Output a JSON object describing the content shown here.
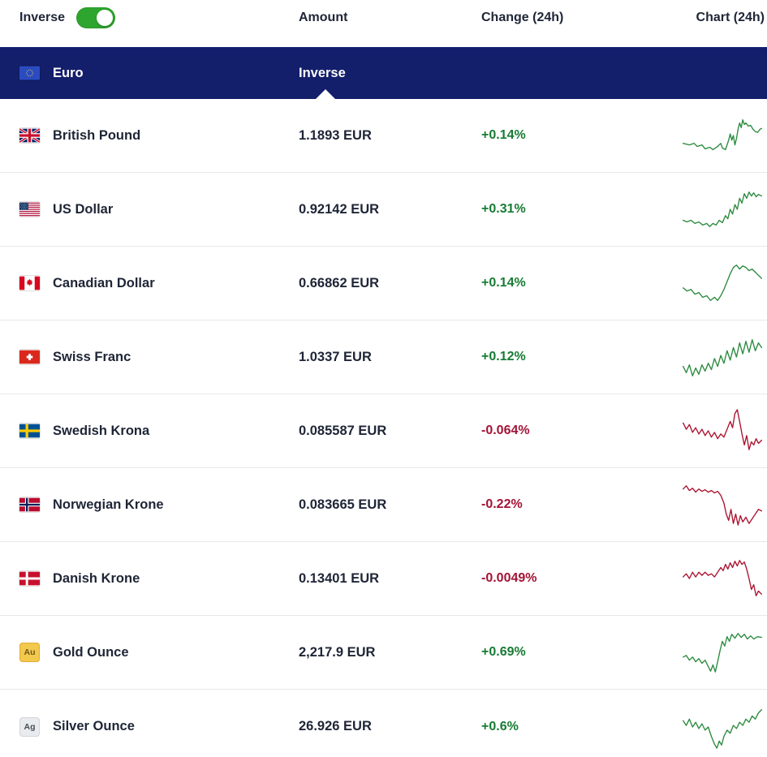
{
  "colors": {
    "navy": "#131f6b",
    "toggle_on": "#2ea52e",
    "positive": "#177b33",
    "negative": "#a31335"
  },
  "header": {
    "inverse_label": "Inverse",
    "toggle_state": "on",
    "amount_col": "Amount",
    "change_col": "Change (24h)",
    "chart_col": "Chart (24h)"
  },
  "base": {
    "flag": "eu",
    "name": "Euro",
    "amount_label": "Inverse"
  },
  "rows": [
    {
      "flag": "gb",
      "name": "British Pound",
      "amount": "1.1893 EUR",
      "change": "+0.14%",
      "direction": "up",
      "spark": [
        [
          0,
          40
        ],
        [
          8,
          42
        ],
        [
          14,
          40
        ],
        [
          18,
          44
        ],
        [
          24,
          42
        ],
        [
          28,
          47
        ],
        [
          34,
          45
        ],
        [
          38,
          48
        ],
        [
          44,
          44
        ],
        [
          48,
          40
        ],
        [
          50,
          46
        ],
        [
          54,
          48
        ],
        [
          58,
          36
        ],
        [
          60,
          28
        ],
        [
          62,
          36
        ],
        [
          64,
          30
        ],
        [
          66,
          42
        ],
        [
          68,
          34
        ],
        [
          70,
          22
        ],
        [
          72,
          14
        ],
        [
          74,
          20
        ],
        [
          76,
          10
        ],
        [
          78,
          16
        ],
        [
          80,
          14
        ],
        [
          83,
          18
        ],
        [
          86,
          17
        ],
        [
          89,
          22
        ],
        [
          92,
          25
        ],
        [
          95,
          26
        ],
        [
          98,
          22
        ],
        [
          100,
          21
        ]
      ]
    },
    {
      "flag": "us",
      "name": "US Dollar",
      "amount": "0.92142 EUR",
      "change": "+0.31%",
      "direction": "up",
      "spark": [
        [
          0,
          44
        ],
        [
          5,
          46
        ],
        [
          10,
          44
        ],
        [
          15,
          48
        ],
        [
          20,
          46
        ],
        [
          25,
          50
        ],
        [
          30,
          48
        ],
        [
          34,
          52
        ],
        [
          38,
          48
        ],
        [
          42,
          50
        ],
        [
          46,
          44
        ],
        [
          50,
          47
        ],
        [
          54,
          38
        ],
        [
          57,
          42
        ],
        [
          60,
          30
        ],
        [
          63,
          36
        ],
        [
          66,
          24
        ],
        [
          69,
          30
        ],
        [
          72,
          16
        ],
        [
          75,
          22
        ],
        [
          78,
          10
        ],
        [
          81,
          16
        ],
        [
          84,
          8
        ],
        [
          87,
          13
        ],
        [
          90,
          9
        ],
        [
          93,
          14
        ],
        [
          96,
          11
        ],
        [
          100,
          13
        ]
      ]
    },
    {
      "flag": "ca",
      "name": "Canadian Dollar",
      "amount": "0.66862 EUR",
      "change": "+0.14%",
      "direction": "up",
      "spark": [
        [
          0,
          36
        ],
        [
          5,
          40
        ],
        [
          10,
          38
        ],
        [
          15,
          44
        ],
        [
          20,
          42
        ],
        [
          25,
          48
        ],
        [
          30,
          46
        ],
        [
          35,
          52
        ],
        [
          40,
          48
        ],
        [
          44,
          52
        ],
        [
          48,
          46
        ],
        [
          52,
          38
        ],
        [
          56,
          28
        ],
        [
          60,
          18
        ],
        [
          64,
          10
        ],
        [
          68,
          7
        ],
        [
          72,
          12
        ],
        [
          76,
          8
        ],
        [
          80,
          10
        ],
        [
          84,
          14
        ],
        [
          88,
          12
        ],
        [
          92,
          16
        ],
        [
          96,
          20
        ],
        [
          100,
          24
        ]
      ]
    },
    {
      "flag": "ch",
      "name": "Swiss Franc",
      "amount": "1.0337 EUR",
      "change": "+0.12%",
      "direction": "up",
      "spark": [
        [
          0,
          42
        ],
        [
          4,
          50
        ],
        [
          8,
          40
        ],
        [
          12,
          54
        ],
        [
          16,
          44
        ],
        [
          20,
          52
        ],
        [
          24,
          40
        ],
        [
          28,
          48
        ],
        [
          32,
          38
        ],
        [
          36,
          46
        ],
        [
          40,
          32
        ],
        [
          44,
          42
        ],
        [
          48,
          28
        ],
        [
          52,
          38
        ],
        [
          56,
          22
        ],
        [
          60,
          34
        ],
        [
          64,
          18
        ],
        [
          68,
          30
        ],
        [
          72,
          12
        ],
        [
          76,
          26
        ],
        [
          80,
          10
        ],
        [
          84,
          24
        ],
        [
          88,
          8
        ],
        [
          92,
          22
        ],
        [
          96,
          12
        ],
        [
          100,
          18
        ]
      ]
    },
    {
      "flag": "se",
      "name": "Swedish Krona",
      "amount": "0.085587 EUR",
      "change": "-0.064%",
      "direction": "down",
      "spark": [
        [
          0,
          20
        ],
        [
          4,
          28
        ],
        [
          8,
          22
        ],
        [
          12,
          32
        ],
        [
          16,
          26
        ],
        [
          20,
          34
        ],
        [
          24,
          28
        ],
        [
          28,
          36
        ],
        [
          32,
          30
        ],
        [
          36,
          38
        ],
        [
          40,
          32
        ],
        [
          44,
          40
        ],
        [
          48,
          34
        ],
        [
          52,
          38
        ],
        [
          56,
          28
        ],
        [
          60,
          18
        ],
        [
          63,
          26
        ],
        [
          66,
          8
        ],
        [
          69,
          3
        ],
        [
          72,
          18
        ],
        [
          75,
          34
        ],
        [
          78,
          48
        ],
        [
          81,
          36
        ],
        [
          84,
          54
        ],
        [
          87,
          44
        ],
        [
          90,
          48
        ],
        [
          93,
          40
        ],
        [
          96,
          46
        ],
        [
          100,
          42
        ]
      ]
    },
    {
      "flag": "no",
      "name": "Norwegian Krone",
      "amount": "0.083665 EUR",
      "change": "-0.22%",
      "direction": "down",
      "spark": [
        [
          0,
          10
        ],
        [
          4,
          6
        ],
        [
          8,
          12
        ],
        [
          12,
          9
        ],
        [
          16,
          14
        ],
        [
          20,
          10
        ],
        [
          24,
          13
        ],
        [
          28,
          11
        ],
        [
          32,
          14
        ],
        [
          36,
          12
        ],
        [
          40,
          15
        ],
        [
          44,
          13
        ],
        [
          48,
          18
        ],
        [
          52,
          28
        ],
        [
          55,
          42
        ],
        [
          58,
          50
        ],
        [
          61,
          36
        ],
        [
          64,
          54
        ],
        [
          67,
          42
        ],
        [
          70,
          56
        ],
        [
          73,
          44
        ],
        [
          76,
          52
        ],
        [
          80,
          46
        ],
        [
          84,
          54
        ],
        [
          88,
          48
        ],
        [
          92,
          42
        ],
        [
          96,
          36
        ],
        [
          100,
          38
        ]
      ]
    },
    {
      "flag": "dk",
      "name": "Danish Krone",
      "amount": "0.13401 EUR",
      "change": "-0.0049%",
      "direction": "down",
      "spark": [
        [
          0,
          28
        ],
        [
          4,
          24
        ],
        [
          8,
          30
        ],
        [
          12,
          22
        ],
        [
          16,
          28
        ],
        [
          20,
          22
        ],
        [
          24,
          26
        ],
        [
          28,
          22
        ],
        [
          32,
          26
        ],
        [
          36,
          24
        ],
        [
          40,
          28
        ],
        [
          44,
          22
        ],
        [
          48,
          16
        ],
        [
          51,
          20
        ],
        [
          54,
          12
        ],
        [
          57,
          18
        ],
        [
          60,
          10
        ],
        [
          63,
          16
        ],
        [
          66,
          8
        ],
        [
          69,
          14
        ],
        [
          72,
          7
        ],
        [
          75,
          12
        ],
        [
          78,
          9
        ],
        [
          81,
          18
        ],
        [
          84,
          30
        ],
        [
          87,
          44
        ],
        [
          90,
          38
        ],
        [
          93,
          52
        ],
        [
          96,
          46
        ],
        [
          100,
          50
        ]
      ]
    },
    {
      "flag": "au",
      "name": "Gold Ounce",
      "amount": "2,217.9 EUR",
      "change": "+0.69%",
      "direction": "up",
      "spark": [
        [
          0,
          36
        ],
        [
          4,
          34
        ],
        [
          8,
          40
        ],
        [
          12,
          36
        ],
        [
          16,
          42
        ],
        [
          20,
          38
        ],
        [
          24,
          44
        ],
        [
          28,
          40
        ],
        [
          32,
          48
        ],
        [
          35,
          54
        ],
        [
          38,
          46
        ],
        [
          41,
          55
        ],
        [
          44,
          42
        ],
        [
          47,
          28
        ],
        [
          50,
          16
        ],
        [
          53,
          22
        ],
        [
          56,
          10
        ],
        [
          59,
          16
        ],
        [
          62,
          7
        ],
        [
          66,
          12
        ],
        [
          70,
          6
        ],
        [
          74,
          11
        ],
        [
          78,
          7
        ],
        [
          82,
          13
        ],
        [
          86,
          9
        ],
        [
          90,
          13
        ],
        [
          95,
          10
        ],
        [
          100,
          11
        ]
      ]
    },
    {
      "flag": "ag",
      "name": "Silver Ounce",
      "amount": "26.926 EUR",
      "change": "+0.6%",
      "direction": "up",
      "spark": [
        [
          0,
          22
        ],
        [
          4,
          28
        ],
        [
          8,
          20
        ],
        [
          12,
          30
        ],
        [
          16,
          24
        ],
        [
          20,
          32
        ],
        [
          24,
          26
        ],
        [
          28,
          34
        ],
        [
          32,
          30
        ],
        [
          36,
          42
        ],
        [
          40,
          52
        ],
        [
          43,
          57
        ],
        [
          46,
          48
        ],
        [
          49,
          53
        ],
        [
          52,
          42
        ],
        [
          56,
          34
        ],
        [
          60,
          38
        ],
        [
          64,
          28
        ],
        [
          68,
          32
        ],
        [
          72,
          24
        ],
        [
          76,
          28
        ],
        [
          80,
          20
        ],
        [
          84,
          24
        ],
        [
          88,
          16
        ],
        [
          92,
          20
        ],
        [
          96,
          12
        ],
        [
          100,
          8
        ]
      ]
    }
  ]
}
